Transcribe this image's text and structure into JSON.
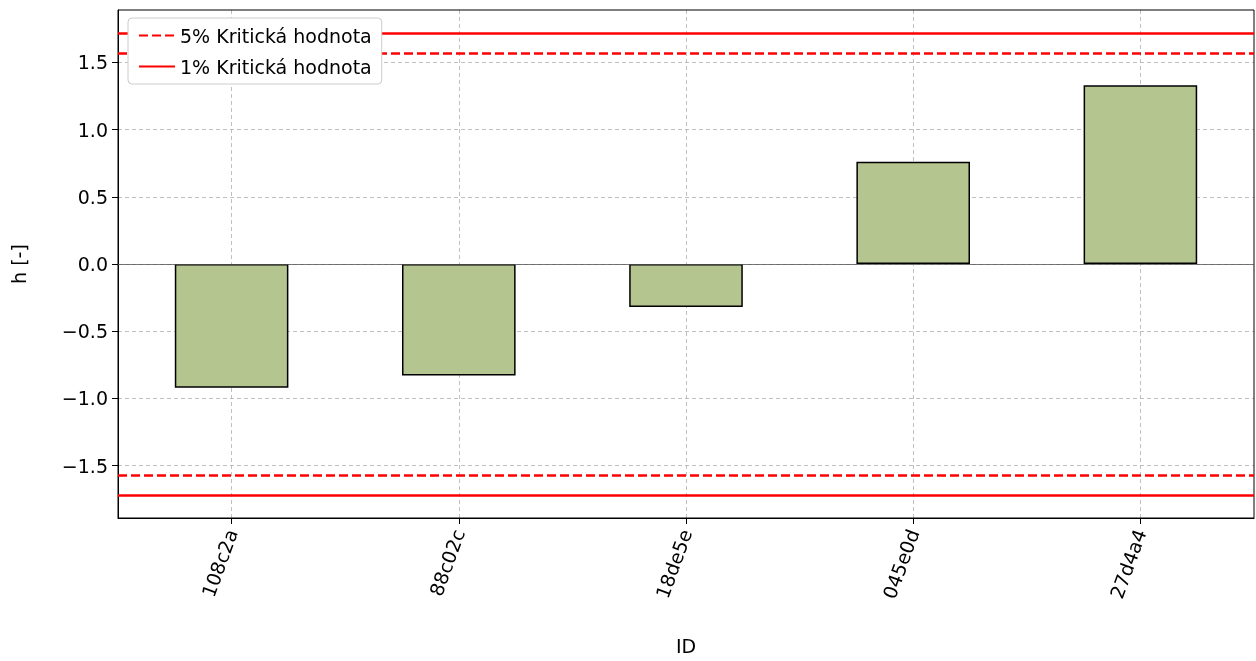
{
  "chart_data": {
    "type": "bar",
    "categories": [
      "108c2a",
      "88c02c",
      "18de5e",
      "045e0d",
      "27d4a4"
    ],
    "values": [
      -0.92,
      -0.83,
      -0.32,
      0.76,
      1.33
    ],
    "color": "#b5c58f",
    "xlabel": "ID",
    "ylabel": "h [-]",
    "ylim": [
      -1.89,
      1.89
    ],
    "yticks": [
      {
        "value": -1.5,
        "label": "−1.5"
      },
      {
        "value": -1.0,
        "label": "−1.0"
      },
      {
        "value": -0.5,
        "label": "−0.5"
      },
      {
        "value": 0,
        "label": "0.0"
      },
      {
        "value": 0.5,
        "label": "0.5"
      },
      {
        "value": 1.0,
        "label": "1.0"
      },
      {
        "value": 1.5,
        "label": "1.5"
      }
    ],
    "grid": true,
    "legend": "top left",
    "ref_lines": [
      {
        "axis": "y",
        "value": 1.57,
        "label": "5% Kritická hodnota",
        "color": "#ff0000",
        "line_style": "dashed"
      },
      {
        "axis": "y",
        "value": -1.57,
        "label": null,
        "color": "#ff0000",
        "line_style": "dashed"
      },
      {
        "axis": "y",
        "value": 1.72,
        "label": "1% Kritická hodnota",
        "color": "#ff0000",
        "line_style": "solid"
      },
      {
        "axis": "y",
        "value": -1.72,
        "label": null,
        "color": "#ff0000",
        "line_style": "solid"
      },
      {
        "axis": "y",
        "value": 0,
        "label": null,
        "color": "#555555",
        "line_style": "solid"
      }
    ]
  }
}
